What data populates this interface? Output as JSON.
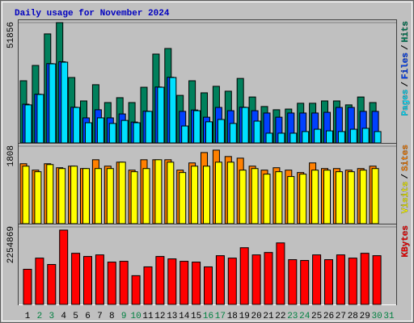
{
  "chart_data": [
    {
      "type": "bar",
      "title": "Daily usage for November 2024",
      "legend_separator": "/",
      "ylim": [
        0,
        51856
      ],
      "yticks": [
        51856
      ],
      "series": [
        {
          "name": "Hits",
          "color": "#00805c",
          "values": [
            26800,
            33400,
            47000,
            51856,
            28200,
            18100,
            25100,
            17400,
            19500,
            17400,
            24000,
            38300,
            40700,
            20500,
            26800,
            21600,
            24400,
            22300,
            27800,
            19800,
            15700,
            14300,
            14600,
            17100,
            17100,
            18100,
            18100,
            16400,
            19800,
            17400,
            null
          ]
        },
        {
          "name": "Files",
          "color": "#0040ff",
          "values": [
            16700,
            21000,
            34200,
            35000,
            15400,
            10800,
            14300,
            10800,
            12500,
            9000,
            13700,
            24100,
            28300,
            13600,
            14200,
            11100,
            15300,
            13900,
            15400,
            13900,
            12900,
            11100,
            12900,
            12900,
            12900,
            13200,
            15300,
            15300,
            13600,
            13600,
            null
          ]
        },
        {
          "name": "Pages",
          "color": "#00e0ff",
          "values": [
            16400,
            20900,
            34100,
            34800,
            15300,
            8700,
            10800,
            8400,
            9700,
            8700,
            13600,
            24000,
            28200,
            7300,
            13900,
            9100,
            10100,
            8400,
            15300,
            9400,
            4200,
            4200,
            4200,
            4900,
            5900,
            5200,
            4900,
            5900,
            6300,
            4900,
            null
          ]
        }
      ]
    },
    {
      "type": "bar",
      "legend_separator": "/",
      "ylim": [
        0,
        1808
      ],
      "yticks": [
        1808
      ],
      "series": [
        {
          "name": "Sites",
          "color": "#ff8000",
          "values": [
            1398,
            1249,
            1398,
            1305,
            1342,
            1286,
            1491,
            1342,
            1435,
            1249,
            1491,
            1491,
            1491,
            1249,
            1417,
            1659,
            1715,
            1566,
            1528,
            1342,
            1249,
            1305,
            1249,
            1193,
            1417,
            1286,
            1286,
            1249,
            1286,
            1342,
            null
          ]
        },
        {
          "name": "Visits",
          "color": "#ffff00",
          "values": [
            1342,
            1212,
            1379,
            1286,
            1342,
            1286,
            1286,
            1286,
            1435,
            1212,
            1286,
            1491,
            1435,
            1193,
            1342,
            1342,
            1435,
            1435,
            1249,
            1286,
            1156,
            1212,
            1100,
            1156,
            1249,
            1249,
            1212,
            1212,
            1249,
            1286,
            null
          ]
        }
      ]
    },
    {
      "type": "bar",
      "ylim": [
        0,
        2254869
      ],
      "yticks": [
        2254869
      ],
      "categories": [
        "1",
        "2",
        "3",
        "4",
        "5",
        "6",
        "7",
        "8",
        "9",
        "10",
        "11",
        "12",
        "13",
        "14",
        "15",
        "16",
        "17",
        "18",
        "19",
        "20",
        "21",
        "22",
        "23",
        "24",
        "25",
        "26",
        "27",
        "28",
        "29",
        "30",
        "31"
      ],
      "category_colors": [
        "#000000",
        "#008040",
        "#008040",
        "#000000",
        "#000000",
        "#000000",
        "#000000",
        "#000000",
        "#008040",
        "#008040",
        "#000000",
        "#000000",
        "#000000",
        "#000000",
        "#000000",
        "#008040",
        "#008040",
        "#000000",
        "#000000",
        "#000000",
        "#000000",
        "#000000",
        "#008040",
        "#008040",
        "#000000",
        "#000000",
        "#000000",
        "#000000",
        "#000000",
        "#008040",
        "#008040"
      ],
      "series": [
        {
          "name": "KBytes",
          "color": "#ff0000",
          "values": [
            1023000,
            1348000,
            1162000,
            2162000,
            1488000,
            1395000,
            1441000,
            1232000,
            1255000,
            837000,
            1093000,
            1395000,
            1325000,
            1255000,
            1232000,
            1093000,
            1418000,
            1348000,
            1650000,
            1441000,
            1511000,
            1790000,
            1302000,
            1279000,
            1441000,
            1302000,
            1441000,
            1348000,
            1488000,
            1418000,
            null
          ]
        }
      ]
    }
  ]
}
